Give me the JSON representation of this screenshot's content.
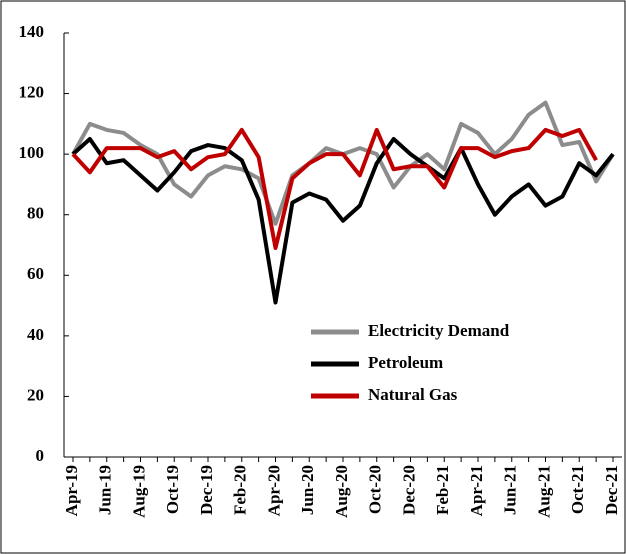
{
  "chart_data": {
    "type": "line",
    "categories": [
      "Apr-19",
      null,
      "Jun-19",
      null,
      "Aug-19",
      null,
      "Oct-19",
      null,
      "Dec-19",
      null,
      "Feb-20",
      null,
      "Apr-20",
      null,
      "Jun-20",
      null,
      "Aug-20",
      null,
      "Oct-20",
      null,
      "Dec-20",
      null,
      "Feb-21",
      null,
      "Apr-21",
      null,
      "Jun-21",
      null,
      "Aug-21",
      null,
      "Oct-21",
      null,
      "Dec-21"
    ],
    "series": [
      {
        "name": "Electricity Demand",
        "color": "#8c8c8c",
        "values": [
          100,
          110,
          108,
          107,
          103,
          100,
          90,
          86,
          93,
          96,
          95,
          92,
          77,
          93,
          97,
          102,
          100,
          102,
          100,
          89,
          96,
          100,
          95,
          110,
          107,
          100,
          105,
          113,
          117,
          103,
          104,
          91,
          100
        ]
      },
      {
        "name": "Petroleum",
        "color": "#000000",
        "values": [
          100,
          105,
          97,
          98,
          93,
          88,
          94,
          101,
          103,
          102,
          98,
          85,
          51,
          84,
          87,
          85,
          78,
          83,
          97,
          105,
          100,
          96,
          92,
          102,
          90,
          80,
          86,
          90,
          83,
          86,
          97,
          93,
          100
        ]
      },
      {
        "name": "Natural Gas",
        "color": "#c00000",
        "values": [
          100,
          94,
          102,
          102,
          102,
          99,
          101,
          95,
          99,
          100,
          108,
          99,
          69,
          92,
          97,
          100,
          100,
          93,
          108,
          95,
          96,
          96,
          89,
          102,
          102,
          99,
          101,
          102,
          108,
          106,
          108,
          98,
          null
        ]
      }
    ],
    "ylim": [
      0,
      140
    ],
    "yticks": [
      0,
      20,
      40,
      60,
      80,
      100,
      120,
      140
    ],
    "grid": false
  }
}
